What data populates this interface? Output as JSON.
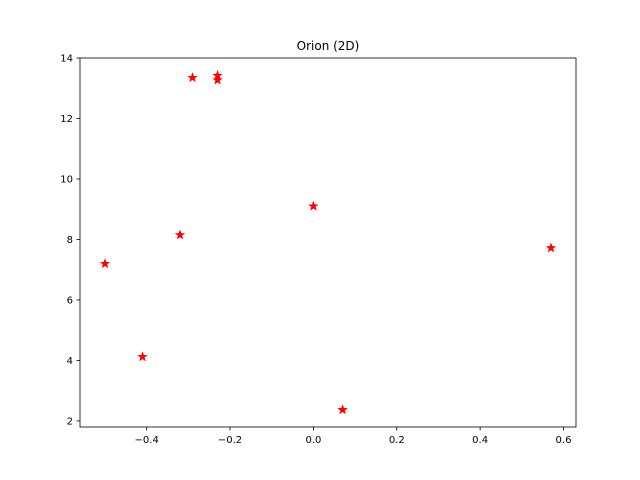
{
  "chart_data": {
    "type": "scatter",
    "title": "Orion (2D)",
    "xlabel": "",
    "ylabel": "",
    "xlim": [
      -0.56,
      0.63
    ],
    "ylim": [
      1.8,
      14.0
    ],
    "xticks": [
      -0.4,
      -0.2,
      0.0,
      0.2,
      0.4,
      0.6
    ],
    "xtick_labels": [
      "−0.4",
      "−0.2",
      "0.0",
      "0.2",
      "0.4",
      "0.6"
    ],
    "yticks": [
      2,
      4,
      6,
      8,
      10,
      12,
      14
    ],
    "ytick_labels": [
      "2",
      "4",
      "6",
      "8",
      "10",
      "12",
      "14"
    ],
    "grid": false,
    "marker": "star",
    "color": "#ff0000",
    "series": [
      {
        "points": [
          {
            "x": -0.29,
            "y": 13.35
          },
          {
            "x": -0.23,
            "y": 13.42
          },
          {
            "x": -0.23,
            "y": 13.27
          },
          {
            "x": -0.32,
            "y": 8.15
          },
          {
            "x": -0.5,
            "y": 7.2
          },
          {
            "x": -0.41,
            "y": 4.12
          },
          {
            "x": 0.0,
            "y": 9.1
          },
          {
            "x": 0.07,
            "y": 2.37
          },
          {
            "x": 0.57,
            "y": 7.72
          }
        ]
      }
    ]
  }
}
